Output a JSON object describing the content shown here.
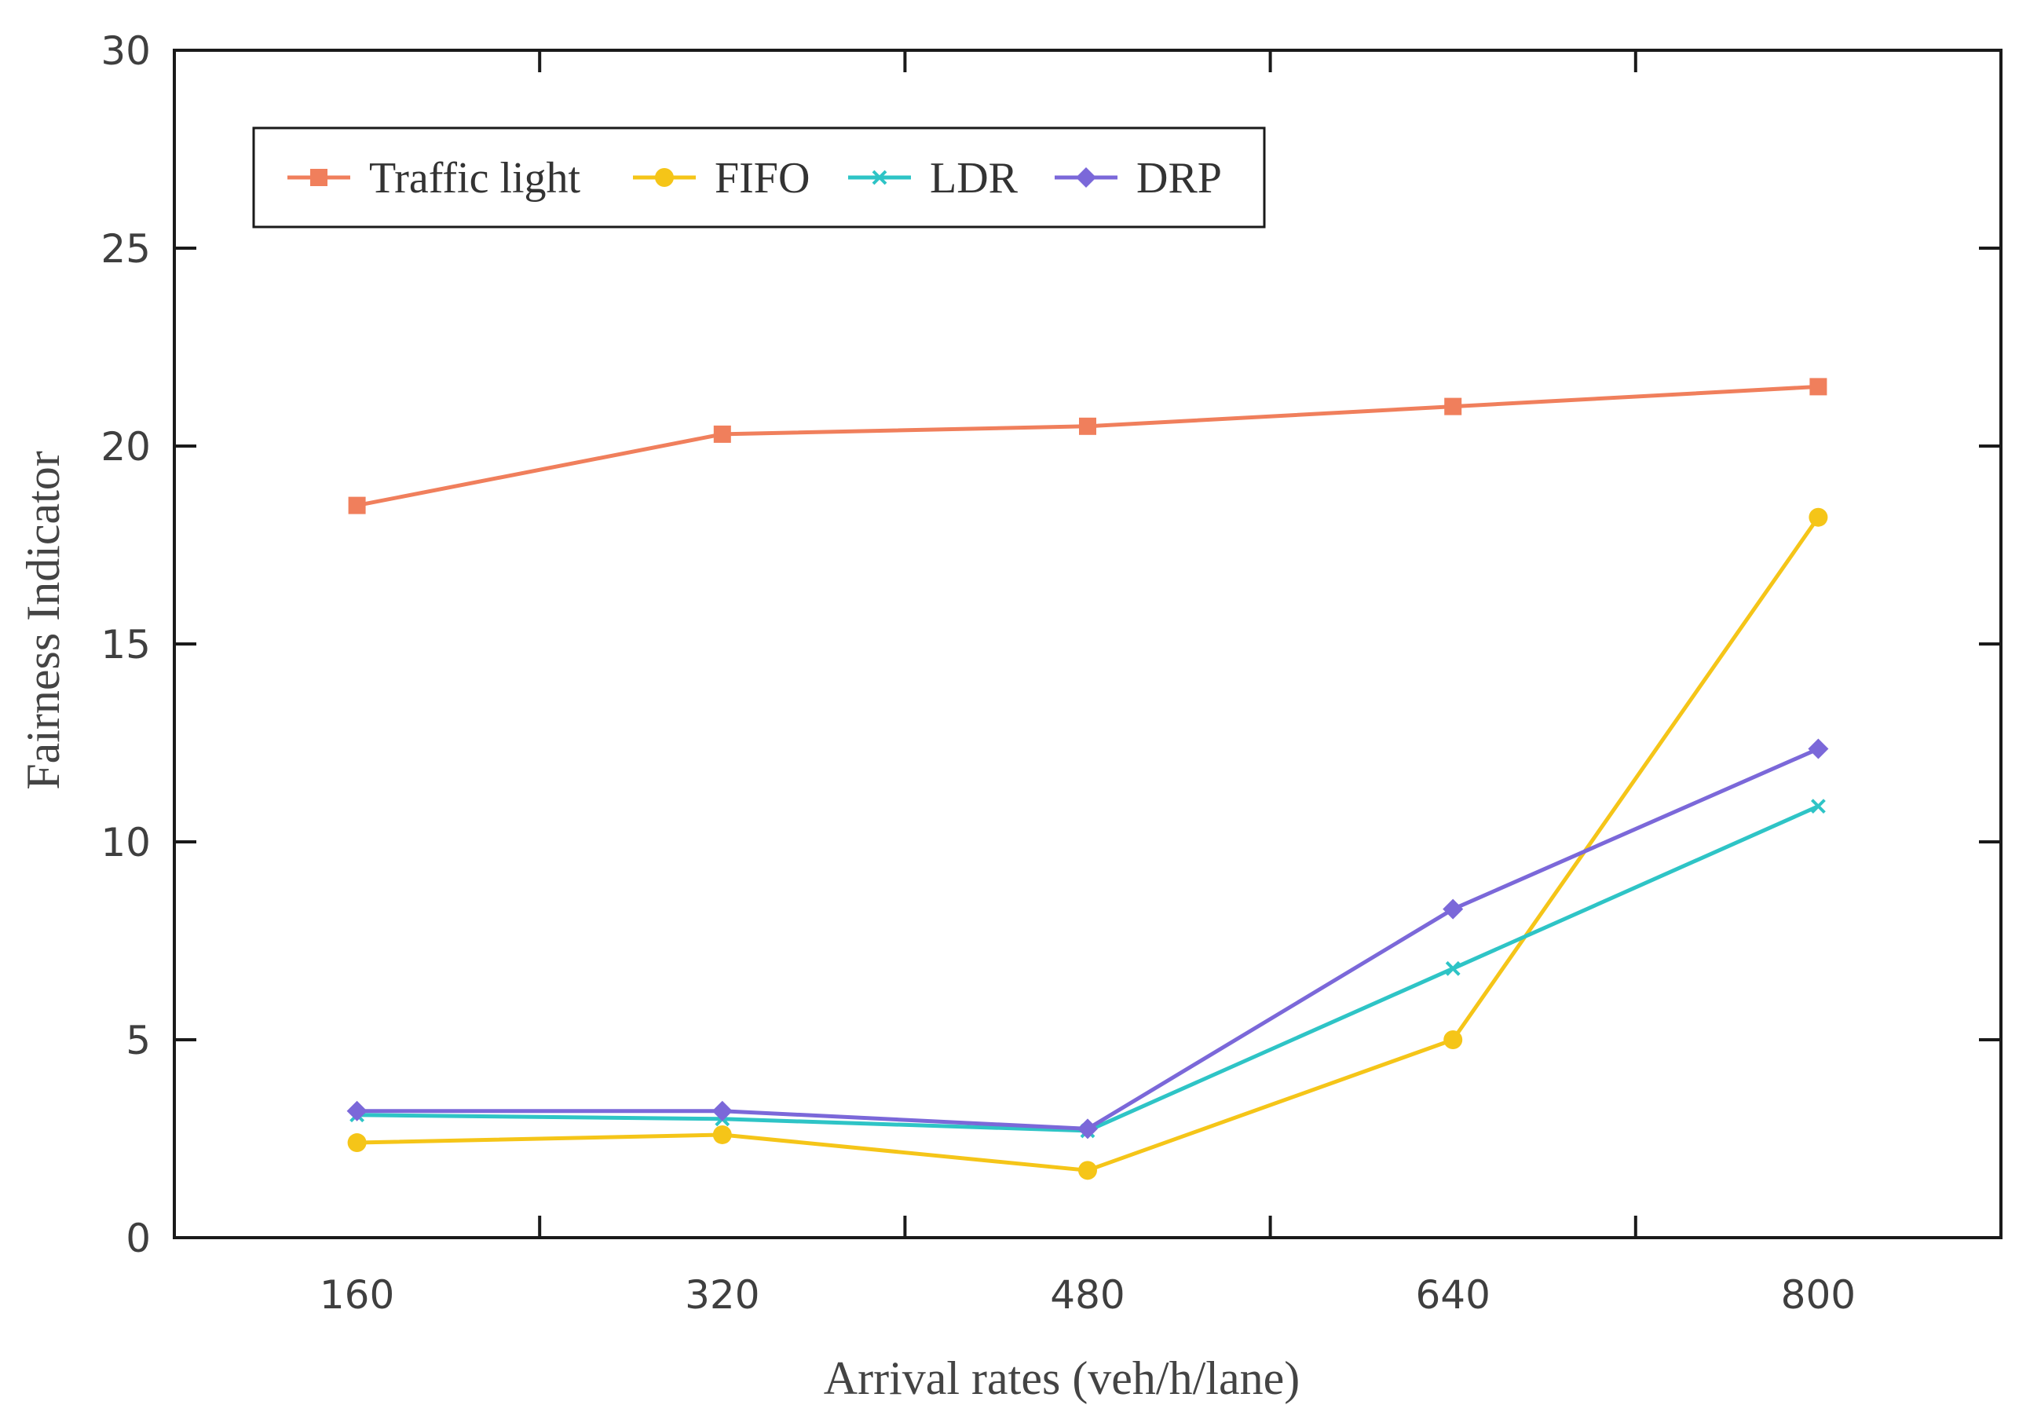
{
  "chart_data": {
    "type": "line",
    "title": "",
    "xlabel": "Arrival rates (veh/h/lane)",
    "ylabel": "Fairness Indicator",
    "x": [
      160,
      320,
      480,
      640,
      800
    ],
    "x_tick_labels": [
      "160",
      "320",
      "480",
      "640",
      "800"
    ],
    "xlim": [
      80,
      880
    ],
    "ylim": [
      0,
      30
    ],
    "y_ticks": [
      0,
      5,
      10,
      15,
      20,
      25,
      30
    ],
    "y_tick_labels": [
      "0",
      "5",
      "10",
      "15",
      "20",
      "25",
      "30"
    ],
    "grid": false,
    "legend_position": "top-left",
    "series": [
      {
        "name": "Traffic light",
        "color": "#f07f5c",
        "marker": "square",
        "values": [
          18.5,
          20.3,
          20.5,
          21.0,
          21.5
        ]
      },
      {
        "name": "FIFO",
        "color": "#f5c518",
        "marker": "circle",
        "values": [
          2.4,
          2.6,
          1.7,
          5.0,
          18.2
        ]
      },
      {
        "name": "LDR",
        "color": "#2ec4c6",
        "marker": "x",
        "values": [
          3.1,
          3.0,
          2.7,
          6.8,
          10.9
        ]
      },
      {
        "name": "DRP",
        "color": "#7b68d9",
        "marker": "diamond",
        "values": [
          3.2,
          3.2,
          2.75,
          8.3,
          12.35
        ]
      }
    ]
  }
}
